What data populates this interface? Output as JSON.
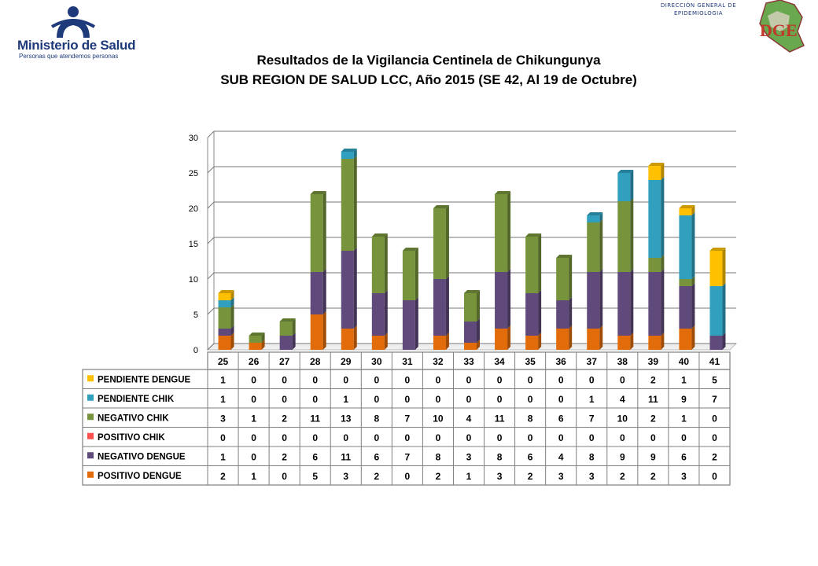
{
  "header": {
    "ministry_name": "Ministerio de Salud",
    "ministry_tagline": "Personas que atendemos personas",
    "dge_line1": "DIRECCIÓN GENERAL DE",
    "dge_line2": "EPIDEMIOLOGIA",
    "dge_logo_letters": "DGE"
  },
  "chart_data": {
    "type": "bar",
    "stacked": true,
    "title": "Resultados de la Vigilancia Centinela de Chikungunya",
    "subtitle": "SUB REGION DE SALUD LCC, Año 2015 (SE 42, Al 19 de Octubre)",
    "categories": [
      "25",
      "26",
      "27",
      "28",
      "29",
      "30",
      "31",
      "32",
      "33",
      "34",
      "35",
      "36",
      "37",
      "38",
      "39",
      "40",
      "41"
    ],
    "ylim": [
      0,
      30
    ],
    "yticks": [
      0,
      5,
      10,
      15,
      20,
      25,
      30
    ],
    "grid": true,
    "legend_placement": "data-table-below",
    "series": [
      {
        "name": "POSITIVO DENGUE",
        "color": "#e36c0a",
        "values": [
          2,
          1,
          0,
          5,
          3,
          2,
          0,
          2,
          1,
          3,
          2,
          3,
          3,
          2,
          2,
          3,
          0
        ]
      },
      {
        "name": "NEGATIVO DENGUE",
        "color": "#604a7b",
        "values": [
          1,
          0,
          2,
          6,
          11,
          6,
          7,
          8,
          3,
          8,
          6,
          4,
          8,
          9,
          9,
          6,
          2
        ]
      },
      {
        "name": "POSITIVO CHIK",
        "color": "#ff5050",
        "values": [
          0,
          0,
          0,
          0,
          0,
          0,
          0,
          0,
          0,
          0,
          0,
          0,
          0,
          0,
          0,
          0,
          0
        ]
      },
      {
        "name": "NEGATIVO CHIK",
        "color": "#77933c",
        "values": [
          3,
          1,
          2,
          11,
          13,
          8,
          7,
          10,
          4,
          11,
          8,
          6,
          7,
          10,
          2,
          1,
          0
        ]
      },
      {
        "name": "PENDIENTE CHIK",
        "color": "#31a0bf",
        "values": [
          1,
          0,
          0,
          0,
          1,
          0,
          0,
          0,
          0,
          0,
          0,
          0,
          1,
          4,
          11,
          9,
          7
        ]
      },
      {
        "name": "PENDIENTE DENGUE",
        "color": "#ffc000",
        "values": [
          1,
          0,
          0,
          0,
          0,
          0,
          0,
          0,
          0,
          0,
          0,
          0,
          0,
          0,
          2,
          1,
          5
        ]
      }
    ],
    "table_row_order": [
      "PENDIENTE DENGUE",
      "PENDIENTE CHIK",
      "NEGATIVO CHIK",
      "POSITIVO CHIK",
      "NEGATIVO DENGUE",
      "POSITIVO DENGUE"
    ]
  }
}
